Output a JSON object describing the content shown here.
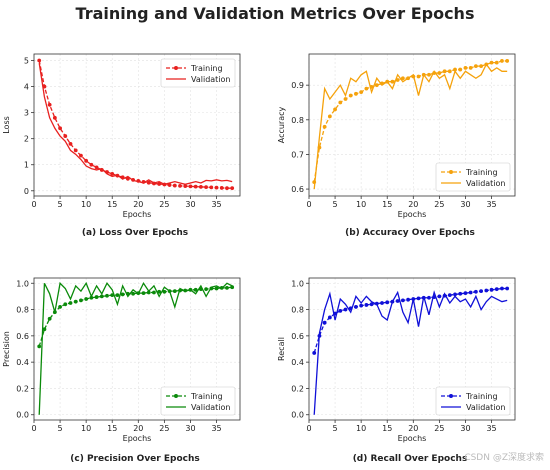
{
  "figure": {
    "title": "Training and Validation Metrics Over Epochs",
    "watermark": "CSDN @Z深度求索"
  },
  "chart_data": [
    {
      "type": "line",
      "caption": "(a) Loss Over Epochs",
      "xlabel": "Epochs",
      "ylabel": "Loss",
      "color": "#e8201f",
      "xlim": [
        0,
        39.5
      ],
      "ylim": [
        -0.2,
        5.25
      ],
      "xticks": [
        0,
        5,
        10,
        15,
        20,
        25,
        30,
        35
      ],
      "yticks": [
        0,
        1,
        2,
        3,
        4,
        5
      ],
      "grid": true,
      "legend": "upper right",
      "x": [
        1,
        2,
        3,
        4,
        5,
        6,
        7,
        8,
        9,
        10,
        11,
        12,
        13,
        14,
        15,
        16,
        17,
        18,
        19,
        20,
        21,
        22,
        23,
        24,
        25,
        26,
        27,
        28,
        29,
        30,
        31,
        32,
        33,
        34,
        35,
        36,
        37,
        38
      ],
      "series": [
        {
          "name": "Training",
          "style": "dashed-marker",
          "values": [
            5.0,
            4.0,
            3.3,
            2.8,
            2.4,
            2.1,
            1.8,
            1.55,
            1.35,
            1.15,
            1.0,
            0.9,
            0.8,
            0.72,
            0.65,
            0.58,
            0.52,
            0.46,
            0.42,
            0.38,
            0.34,
            0.31,
            0.28,
            0.26,
            0.24,
            0.22,
            0.2,
            0.19,
            0.18,
            0.17,
            0.16,
            0.15,
            0.14,
            0.13,
            0.12,
            0.11,
            0.1,
            0.1
          ]
        },
        {
          "name": "Validation",
          "style": "solid",
          "values": [
            4.9,
            3.6,
            2.8,
            2.4,
            2.1,
            1.9,
            1.55,
            1.4,
            1.2,
            0.95,
            0.85,
            0.8,
            0.85,
            0.65,
            0.55,
            0.6,
            0.45,
            0.55,
            0.4,
            0.35,
            0.3,
            0.42,
            0.3,
            0.35,
            0.25,
            0.3,
            0.35,
            0.3,
            0.25,
            0.3,
            0.35,
            0.3,
            0.4,
            0.38,
            0.42,
            0.38,
            0.4,
            0.35
          ]
        }
      ]
    },
    {
      "type": "line",
      "caption": "(b) Accuracy Over Epochs",
      "xlabel": "Epochs",
      "ylabel": "Accuracy",
      "color": "#f5a20c",
      "xlim": [
        0,
        39.5
      ],
      "ylim": [
        0.58,
        0.99
      ],
      "xticks": [
        0,
        5,
        10,
        15,
        20,
        25,
        30,
        35
      ],
      "yticks": [
        0.6,
        0.7,
        0.8,
        0.9
      ],
      "grid": true,
      "legend": "lower right",
      "x": [
        1,
        2,
        3,
        4,
        5,
        6,
        7,
        8,
        9,
        10,
        11,
        12,
        13,
        14,
        15,
        16,
        17,
        18,
        19,
        20,
        21,
        22,
        23,
        24,
        25,
        26,
        27,
        28,
        29,
        30,
        31,
        32,
        33,
        34,
        35,
        36,
        37,
        38
      ],
      "series": [
        {
          "name": "Training",
          "style": "dashed-marker",
          "values": [
            0.62,
            0.72,
            0.78,
            0.81,
            0.83,
            0.85,
            0.86,
            0.87,
            0.875,
            0.88,
            0.89,
            0.895,
            0.9,
            0.905,
            0.91,
            0.91,
            0.915,
            0.92,
            0.92,
            0.925,
            0.925,
            0.93,
            0.93,
            0.935,
            0.935,
            0.94,
            0.94,
            0.945,
            0.945,
            0.95,
            0.95,
            0.955,
            0.955,
            0.96,
            0.965,
            0.965,
            0.97,
            0.97
          ]
        },
        {
          "name": "Validation",
          "style": "solid",
          "values": [
            0.6,
            0.75,
            0.89,
            0.86,
            0.88,
            0.9,
            0.87,
            0.92,
            0.91,
            0.93,
            0.94,
            0.88,
            0.92,
            0.9,
            0.91,
            0.89,
            0.93,
            0.91,
            0.92,
            0.93,
            0.87,
            0.93,
            0.91,
            0.94,
            0.92,
            0.93,
            0.89,
            0.94,
            0.92,
            0.94,
            0.93,
            0.92,
            0.93,
            0.96,
            0.94,
            0.95,
            0.94,
            0.94
          ]
        }
      ]
    },
    {
      "type": "line",
      "caption": "(c) Precision Over Epochs",
      "xlabel": "Epochs",
      "ylabel": "Precision",
      "color": "#0a8a0a",
      "xlim": [
        0,
        39.5
      ],
      "ylim": [
        -0.04,
        1.04
      ],
      "xticks": [
        0,
        5,
        10,
        15,
        20,
        25,
        30,
        35
      ],
      "yticks": [
        0.0,
        0.2,
        0.4,
        0.6,
        0.8,
        1.0
      ],
      "grid": true,
      "legend": "lower right",
      "x": [
        1,
        2,
        3,
        4,
        5,
        6,
        7,
        8,
        9,
        10,
        11,
        12,
        13,
        14,
        15,
        16,
        17,
        18,
        19,
        20,
        21,
        22,
        23,
        24,
        25,
        26,
        27,
        28,
        29,
        30,
        31,
        32,
        33,
        34,
        35,
        36,
        37,
        38
      ],
      "series": [
        {
          "name": "Training",
          "style": "dashed-marker",
          "values": [
            0.52,
            0.65,
            0.73,
            0.78,
            0.82,
            0.84,
            0.85,
            0.86,
            0.87,
            0.88,
            0.89,
            0.895,
            0.9,
            0.905,
            0.91,
            0.91,
            0.915,
            0.92,
            0.92,
            0.925,
            0.925,
            0.93,
            0.93,
            0.935,
            0.935,
            0.94,
            0.94,
            0.945,
            0.945,
            0.95,
            0.95,
            0.955,
            0.955,
            0.96,
            0.96,
            0.965,
            0.965,
            0.97
          ]
        },
        {
          "name": "Validation",
          "style": "solid",
          "values": [
            0.0,
            1.0,
            0.92,
            0.78,
            1.0,
            0.96,
            0.88,
            0.98,
            0.94,
            1.0,
            0.9,
            0.98,
            0.92,
            1.0,
            0.95,
            0.84,
            0.98,
            0.9,
            0.95,
            0.92,
            1.0,
            0.94,
            0.98,
            0.9,
            0.97,
            0.94,
            0.82,
            0.96,
            0.94,
            0.95,
            0.92,
            0.98,
            0.9,
            0.97,
            0.98,
            0.96,
            1.0,
            0.98
          ]
        }
      ]
    },
    {
      "type": "line",
      "caption": "(d) Recall Over Epochs",
      "xlabel": "Epochs",
      "ylabel": "Recall",
      "color": "#1010d8",
      "xlim": [
        0,
        39.5
      ],
      "ylim": [
        -0.04,
        1.04
      ],
      "xticks": [
        0,
        5,
        10,
        15,
        20,
        25,
        30,
        35
      ],
      "yticks": [
        0.0,
        0.2,
        0.4,
        0.6,
        0.8,
        1.0
      ],
      "grid": true,
      "legend": "lower right",
      "x": [
        1,
        2,
        3,
        4,
        5,
        6,
        7,
        8,
        9,
        10,
        11,
        12,
        13,
        14,
        15,
        16,
        17,
        18,
        19,
        20,
        21,
        22,
        23,
        24,
        25,
        26,
        27,
        28,
        29,
        30,
        31,
        32,
        33,
        34,
        35,
        36,
        37,
        38
      ],
      "series": [
        {
          "name": "Training",
          "style": "dashed-marker",
          "values": [
            0.47,
            0.6,
            0.7,
            0.74,
            0.77,
            0.79,
            0.8,
            0.81,
            0.82,
            0.83,
            0.835,
            0.84,
            0.845,
            0.85,
            0.855,
            0.86,
            0.865,
            0.87,
            0.875,
            0.88,
            0.885,
            0.89,
            0.89,
            0.895,
            0.9,
            0.905,
            0.91,
            0.915,
            0.92,
            0.925,
            0.93,
            0.935,
            0.94,
            0.945,
            0.95,
            0.955,
            0.96,
            0.96
          ]
        },
        {
          "name": "Validation",
          "style": "solid",
          "values": [
            0.0,
            0.62,
            0.8,
            0.92,
            0.72,
            0.88,
            0.84,
            0.78,
            0.9,
            0.85,
            0.9,
            0.86,
            0.84,
            0.75,
            0.72,
            0.86,
            0.93,
            0.78,
            0.7,
            0.88,
            0.67,
            0.9,
            0.76,
            0.93,
            0.82,
            0.92,
            0.85,
            0.9,
            0.86,
            0.88,
            0.82,
            0.9,
            0.8,
            0.86,
            0.9,
            0.88,
            0.86,
            0.87
          ]
        }
      ]
    }
  ]
}
